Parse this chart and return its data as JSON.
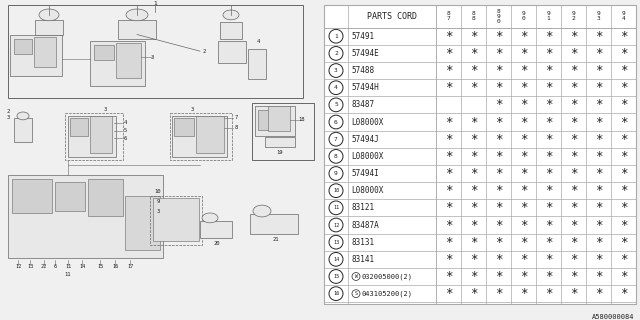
{
  "bg_color": "#f0f0f0",
  "parts_cord_header": "PARTS CORD",
  "year_headers": [
    "8\n7",
    "8\n8",
    "8\n9\n0",
    "9\n0",
    "9\n1",
    "9\n2",
    "9\n3",
    "9\n4"
  ],
  "rows": [
    {
      "num": "1",
      "code": "57491",
      "marks": [
        1,
        1,
        1,
        1,
        1,
        1,
        1,
        1
      ]
    },
    {
      "num": "2",
      "code": "57494E",
      "marks": [
        1,
        1,
        1,
        1,
        1,
        1,
        1,
        1
      ]
    },
    {
      "num": "3",
      "code": "57488",
      "marks": [
        1,
        1,
        1,
        1,
        1,
        1,
        1,
        1
      ]
    },
    {
      "num": "4",
      "code": "57494H",
      "marks": [
        1,
        1,
        1,
        1,
        1,
        1,
        1,
        1
      ]
    },
    {
      "num": "5",
      "code": "83487",
      "marks": [
        0,
        0,
        1,
        1,
        1,
        1,
        1,
        1
      ]
    },
    {
      "num": "6",
      "code": "L08000X",
      "marks": [
        1,
        1,
        1,
        1,
        1,
        1,
        1,
        1
      ]
    },
    {
      "num": "7",
      "code": "57494J",
      "marks": [
        1,
        1,
        1,
        1,
        1,
        1,
        1,
        1
      ]
    },
    {
      "num": "8",
      "code": "L08000X",
      "marks": [
        1,
        1,
        1,
        1,
        1,
        1,
        1,
        1
      ]
    },
    {
      "num": "9",
      "code": "57494I",
      "marks": [
        1,
        1,
        1,
        1,
        1,
        1,
        1,
        1
      ]
    },
    {
      "num": "10",
      "code": "L08000X",
      "marks": [
        1,
        1,
        1,
        1,
        1,
        1,
        1,
        1
      ]
    },
    {
      "num": "11",
      "code": "83121",
      "marks": [
        1,
        1,
        1,
        1,
        1,
        1,
        1,
        1
      ]
    },
    {
      "num": "12",
      "code": "83487A",
      "marks": [
        1,
        1,
        1,
        1,
        1,
        1,
        1,
        1
      ]
    },
    {
      "num": "13",
      "code": "83131",
      "marks": [
        1,
        1,
        1,
        1,
        1,
        1,
        1,
        1
      ]
    },
    {
      "num": "14",
      "code": "83141",
      "marks": [
        1,
        1,
        1,
        1,
        1,
        1,
        1,
        1
      ]
    },
    {
      "num": "15",
      "code": "032005000(2)",
      "marks": [
        1,
        1,
        1,
        1,
        1,
        1,
        1,
        1
      ],
      "special": "W"
    },
    {
      "num": "16",
      "code": "043105200(2)",
      "marks": [
        1,
        1,
        1,
        1,
        1,
        1,
        1,
        1
      ],
      "special": "S"
    }
  ],
  "watermark": "A580000084",
  "line_color": "#aaaaaa",
  "text_color": "#222222",
  "table_line_color": "#aaaaaa",
  "diagram_line_color": "#666666",
  "diagram_fill": "#e8e8e8"
}
